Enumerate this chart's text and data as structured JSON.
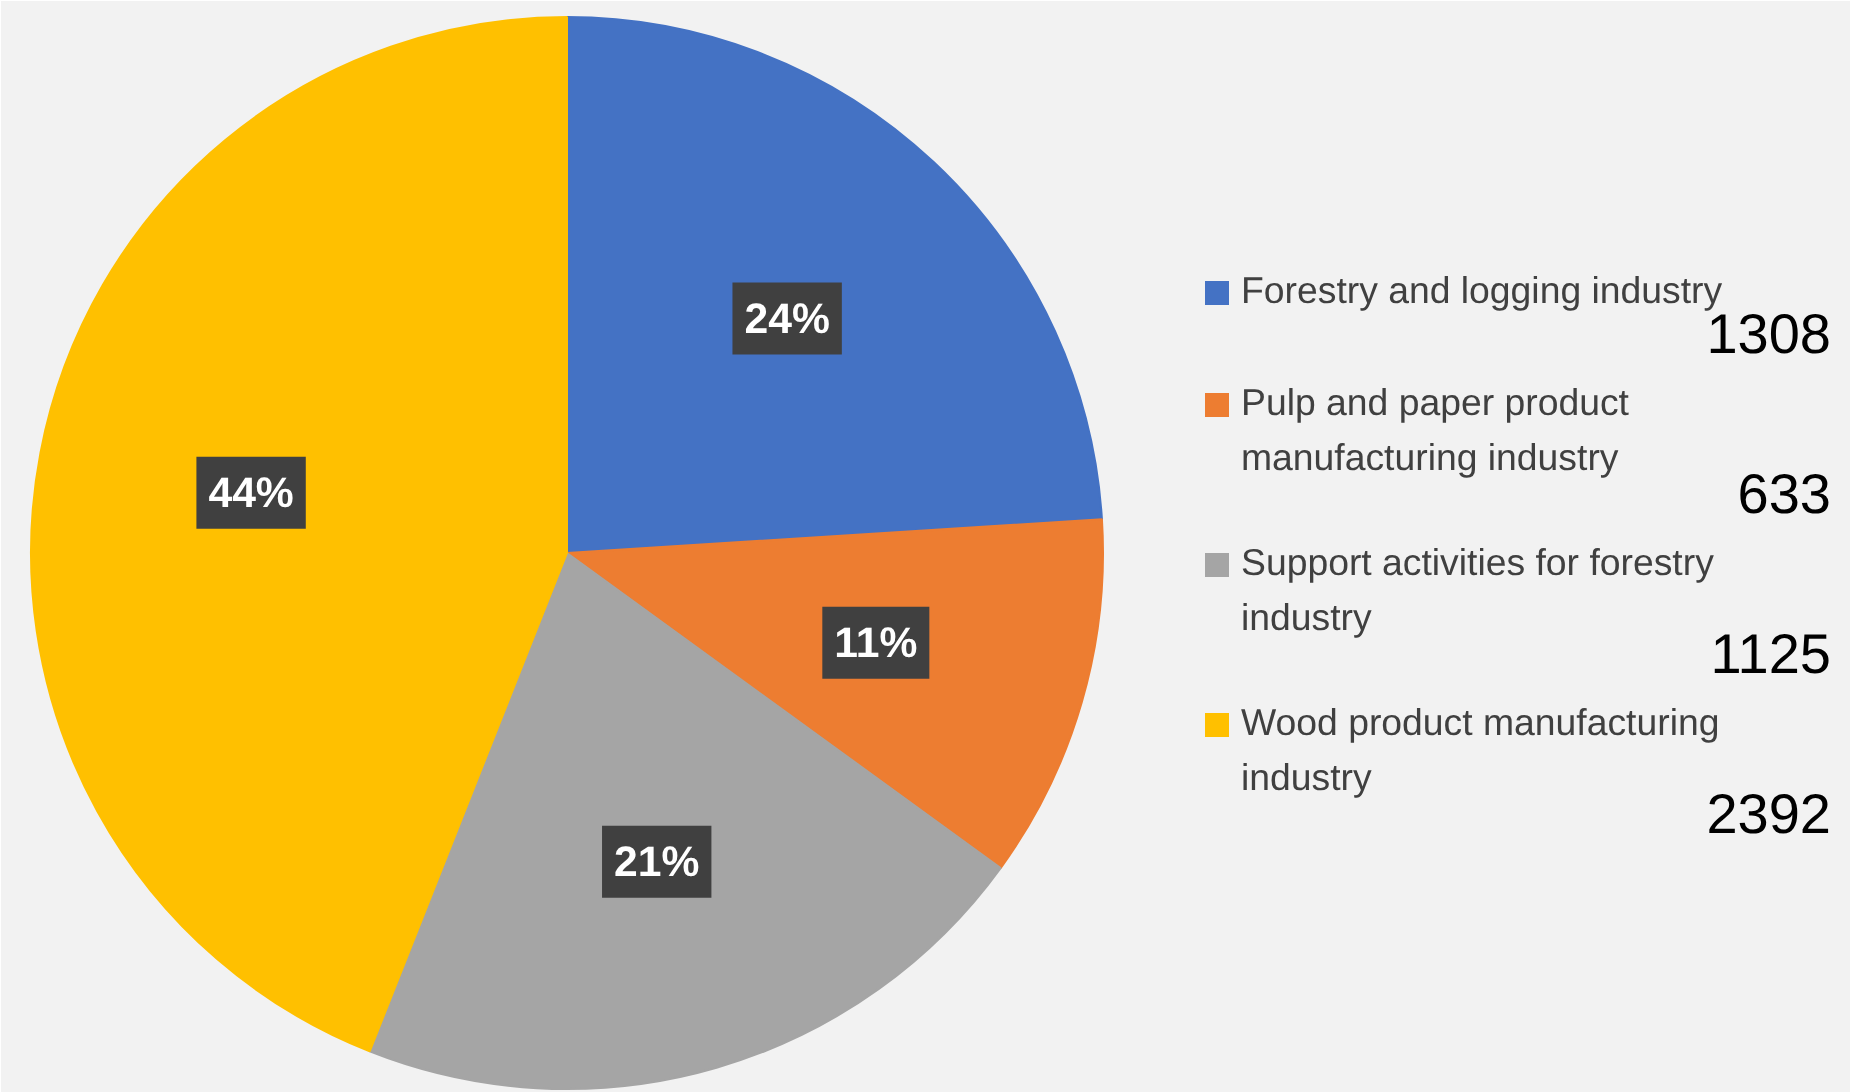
{
  "chart_data": {
    "type": "pie",
    "categories": [
      "Forestry and logging industry",
      "Pulp and paper product manufacturing industry",
      "Support activities for forestry industry",
      "Wood product manufacturing industry"
    ],
    "values": [
      24,
      11,
      21,
      44
    ],
    "colors": [
      "#4472c4",
      "#ed7d31",
      "#a5a5a5",
      "#ffc000"
    ],
    "value_labels": [
      "24%",
      "11%",
      "21%",
      "44%"
    ],
    "annotations": [
      "1308",
      "633",
      "1125",
      "2392"
    ],
    "legend": "right"
  }
}
